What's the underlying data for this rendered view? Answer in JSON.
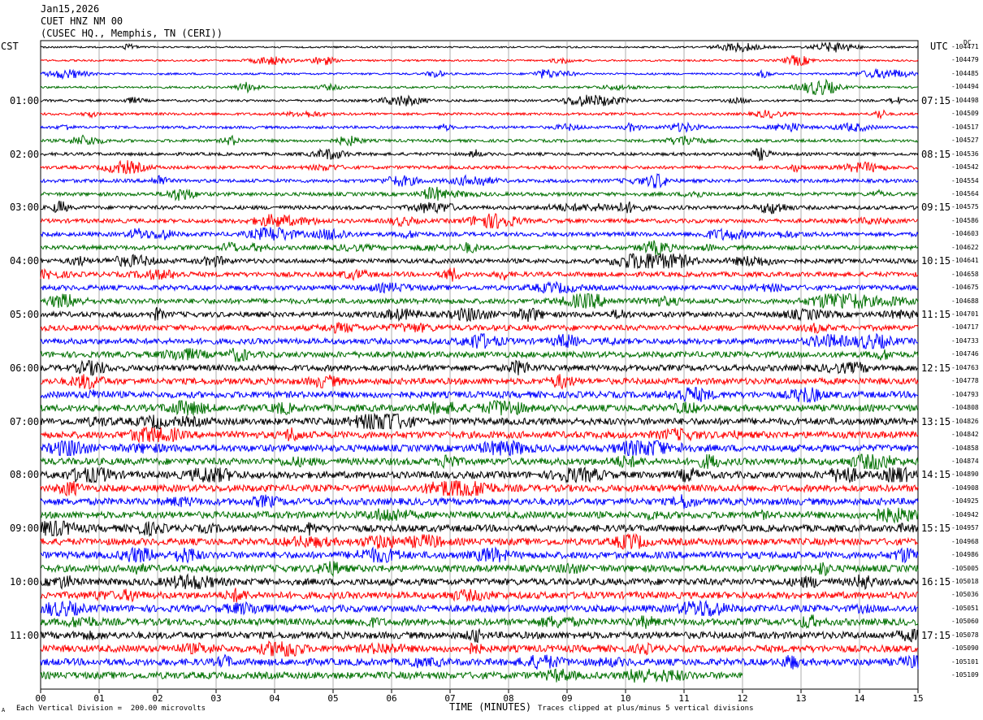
{
  "header": {
    "date": "Jan15,2026",
    "station": "CUET HNZ NM 00",
    "location": "(CUSEC HQ., Memphis, TN (CERI))"
  },
  "left_timezone": "CST",
  "right_timezone": "UTC",
  "dc_label": "DC",
  "footer": {
    "scale_note": "Each Vertical Division =  200.00 microvolts",
    "clip_note": "Traces clipped at plus/minus 5 vertical divisions",
    "corner_mark": "A"
  },
  "chart_data": {
    "type": "line",
    "xlabel": "TIME (MINUTES)",
    "xlim": [
      0,
      15
    ],
    "x_ticks": [
      "00",
      "01",
      "02",
      "03",
      "04",
      "05",
      "06",
      "07",
      "08",
      "09",
      "10",
      "11",
      "12",
      "13",
      "14",
      "15"
    ],
    "trace_colors": [
      "#000000",
      "#ff0000",
      "#0000ff",
      "#007000"
    ],
    "left_hour_labels": [
      "01:00",
      "02:00",
      "03:00",
      "04:00",
      "05:00",
      "06:00",
      "07:00",
      "08:00",
      "09:00",
      "10:00",
      "11:00"
    ],
    "right_hour_labels": [
      "07:15",
      "08:15",
      "09:15",
      "10:15",
      "11:15",
      "12:15",
      "13:15",
      "14:15",
      "15:15",
      "16:15",
      "17:15"
    ],
    "trace_dc_offsets": [
      "-104471",
      "-104479",
      "-104485",
      "-104494",
      "-104498",
      "-104509",
      "-104517",
      "-104527",
      "-104536",
      "-104542",
      "-104554",
      "-104564",
      "-104575",
      "-104586",
      "-104603",
      "-104622",
      "-104641",
      "-104658",
      "-104675",
      "-104688",
      "-104701",
      "-104717",
      "-104733",
      "-104746",
      "-104763",
      "-104778",
      "-104793",
      "-104808",
      "-104826",
      "-104842",
      "-104858",
      "-104874",
      "-104890",
      "-104908",
      "-104925",
      "-104942",
      "-104957",
      "-104968",
      "-104986",
      "-105005",
      "-105018",
      "-105036",
      "-105051",
      "-105060",
      "-105078",
      "-105090",
      "-105101",
      "-105109"
    ],
    "trace_count": 48,
    "last_trace_end_minute": 12
  }
}
